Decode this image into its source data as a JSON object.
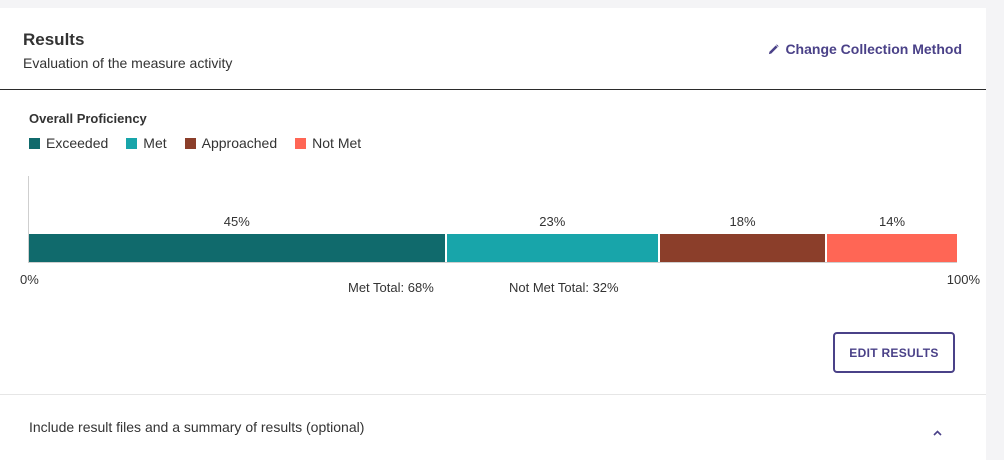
{
  "header": {
    "title": "Results",
    "subtitle": "Evaluation of the measure activity",
    "change_method_label": "Change Collection Method",
    "accent_color": "#4a4188"
  },
  "proficiency": {
    "label": "Overall Proficiency",
    "legend": [
      {
        "name": "Exceeded",
        "color": "#106a6c"
      },
      {
        "name": "Met",
        "color": "#18a5aa"
      },
      {
        "name": "Approached",
        "color": "#8b3e2a"
      },
      {
        "name": "Not Met",
        "color": "#ff6655"
      }
    ],
    "met_total": "Met Total: 68%",
    "not_met_total": "Not Met Total: 32%",
    "axis_min_label": "0%",
    "axis_max_label": "100%"
  },
  "chart_data": {
    "type": "bar",
    "orientation": "horizontal-stacked",
    "categories": [
      "Exceeded",
      "Met",
      "Approached",
      "Not Met"
    ],
    "values": [
      45,
      23,
      18,
      14
    ],
    "value_labels": [
      "45%",
      "23%",
      "18%",
      "14%"
    ],
    "colors": [
      "#106a6c",
      "#18a5aa",
      "#8b3e2a",
      "#ff6655"
    ],
    "xlim": [
      0,
      100
    ],
    "grid": false
  },
  "actions": {
    "edit_results_label": "EDIT RESULTS"
  },
  "accordion": {
    "label": "Include result files and a summary of results (optional)",
    "icon": "chevron-up-icon"
  }
}
